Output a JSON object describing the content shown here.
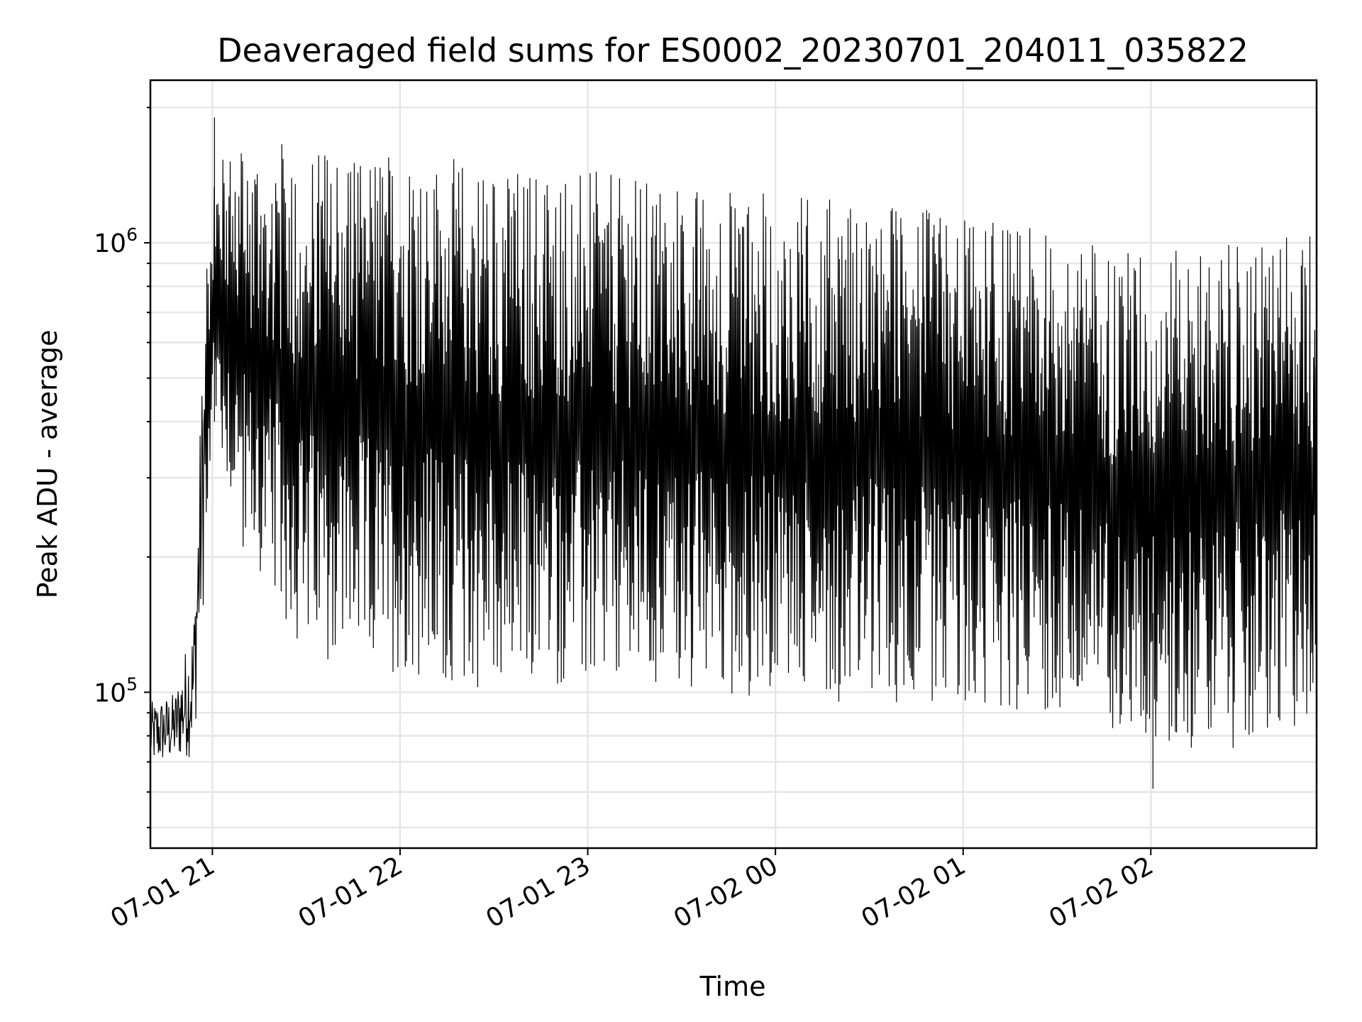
{
  "chart_data": {
    "type": "line",
    "title": "Deaveraged field sums for ES0002_20230701_204011_035822",
    "xlabel": "Time",
    "ylabel": "Peak ADU - average",
    "yscale": "log",
    "xlim": [
      "2023-07-01 20:40:11",
      "2023-07-02 02:53:00"
    ],
    "ylim": [
      45000,
      2300000
    ],
    "x_ticks": [
      {
        "value": "2023-07-01 21:00",
        "label": "07-01 21"
      },
      {
        "value": "2023-07-01 22:00",
        "label": "07-01 22"
      },
      {
        "value": "2023-07-01 23:00",
        "label": "07-01 23"
      },
      {
        "value": "2023-07-02 00:00",
        "label": "07-02 00"
      },
      {
        "value": "2023-07-02 01:00",
        "label": "07-02 01"
      },
      {
        "value": "2023-07-02 02:00",
        "label": "07-02 02"
      }
    ],
    "y_ticks": [
      {
        "value": 100000,
        "base": "10",
        "exp": "5"
      },
      {
        "value": 1000000,
        "base": "10",
        "exp": "6"
      }
    ],
    "grid": true,
    "line_color": "#000000",
    "envelope": {
      "note_x_unit": "time",
      "x": [
        "2023-07-01 20:40",
        "2023-07-01 20:48",
        "2023-07-01 20:54",
        "2023-07-01 20:57",
        "2023-07-01 21:00",
        "2023-07-01 21:10",
        "2023-07-01 21:30",
        "2023-07-01 22:00",
        "2023-07-01 22:30",
        "2023-07-01 23:00",
        "2023-07-01 23:30",
        "2023-07-02 00:00",
        "2023-07-02 00:30",
        "2023-07-02 01:00",
        "2023-07-02 01:30",
        "2023-07-02 02:00",
        "2023-07-02 02:30",
        "2023-07-02 02:53"
      ],
      "upper": [
        95000,
        100000,
        150000,
        600000,
        1500000,
        1700000,
        1650000,
        1600000,
        1500000,
        1450000,
        1350000,
        1300000,
        1250000,
        1150000,
        1050000,
        950000,
        1000000,
        1100000
      ],
      "lower": [
        68000,
        70000,
        72000,
        150000,
        400000,
        200000,
        120000,
        110000,
        100000,
        100000,
        100000,
        95000,
        95000,
        92000,
        90000,
        75000,
        75000,
        85000
      ]
    },
    "extremes": {
      "max": {
        "x": "2023-07-01 21:00",
        "y": 1900000
      },
      "min": {
        "x": "2023-07-02 02:00",
        "y": 61000
      }
    }
  }
}
